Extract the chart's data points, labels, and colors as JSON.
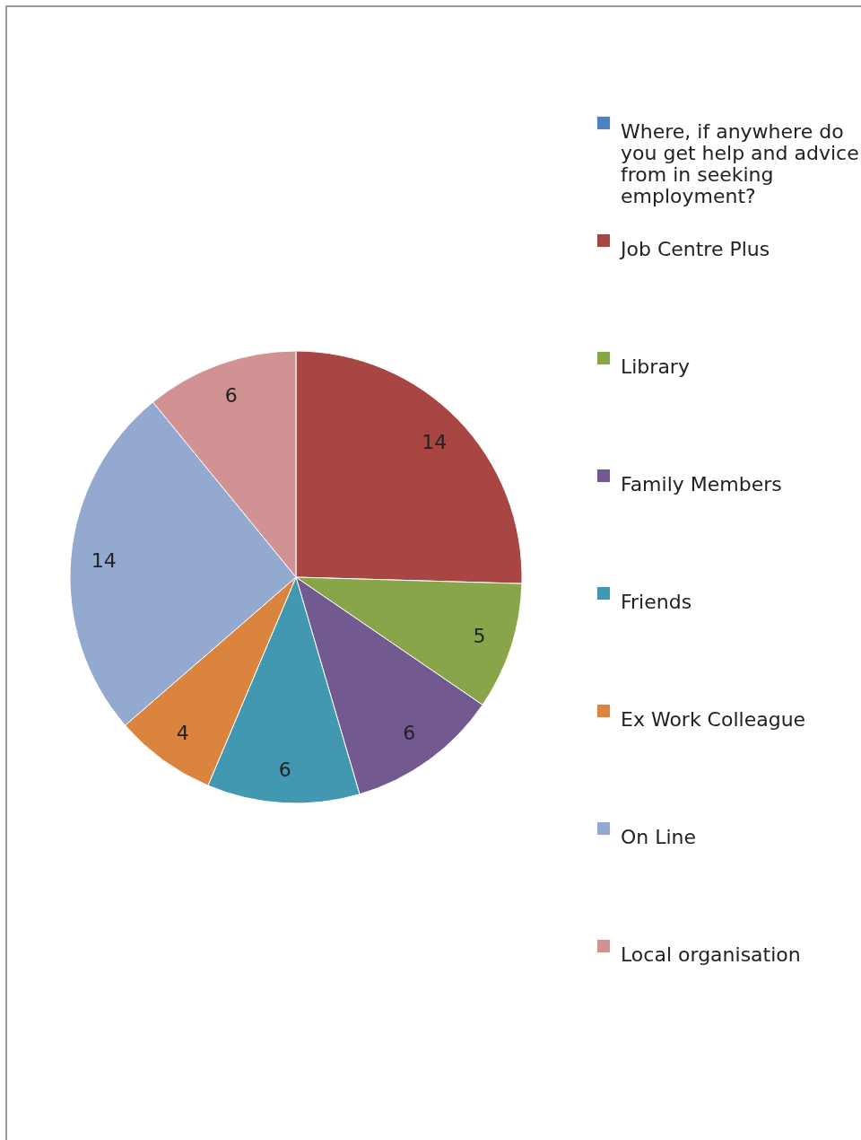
{
  "chart_data": {
    "type": "pie",
    "categories": [
      "Where, if anywhere do you get help and advice from in seeking employment?",
      "Job Centre Plus",
      "Library",
      "Family Members",
      "Friends",
      "Ex Work Colleague",
      "On Line",
      "Local organisation"
    ],
    "values": [
      0,
      14,
      5,
      6,
      6,
      4,
      14,
      6
    ],
    "value_labels": [
      null,
      "14",
      "5",
      "6",
      "6",
      "4",
      "14",
      "6"
    ],
    "colors": [
      "#4f81bd",
      "#a84644",
      "#88a54a",
      "#725990",
      "#4298b0",
      "#db843d",
      "#93a9cf",
      "#d09293"
    ],
    "legend": "right"
  }
}
